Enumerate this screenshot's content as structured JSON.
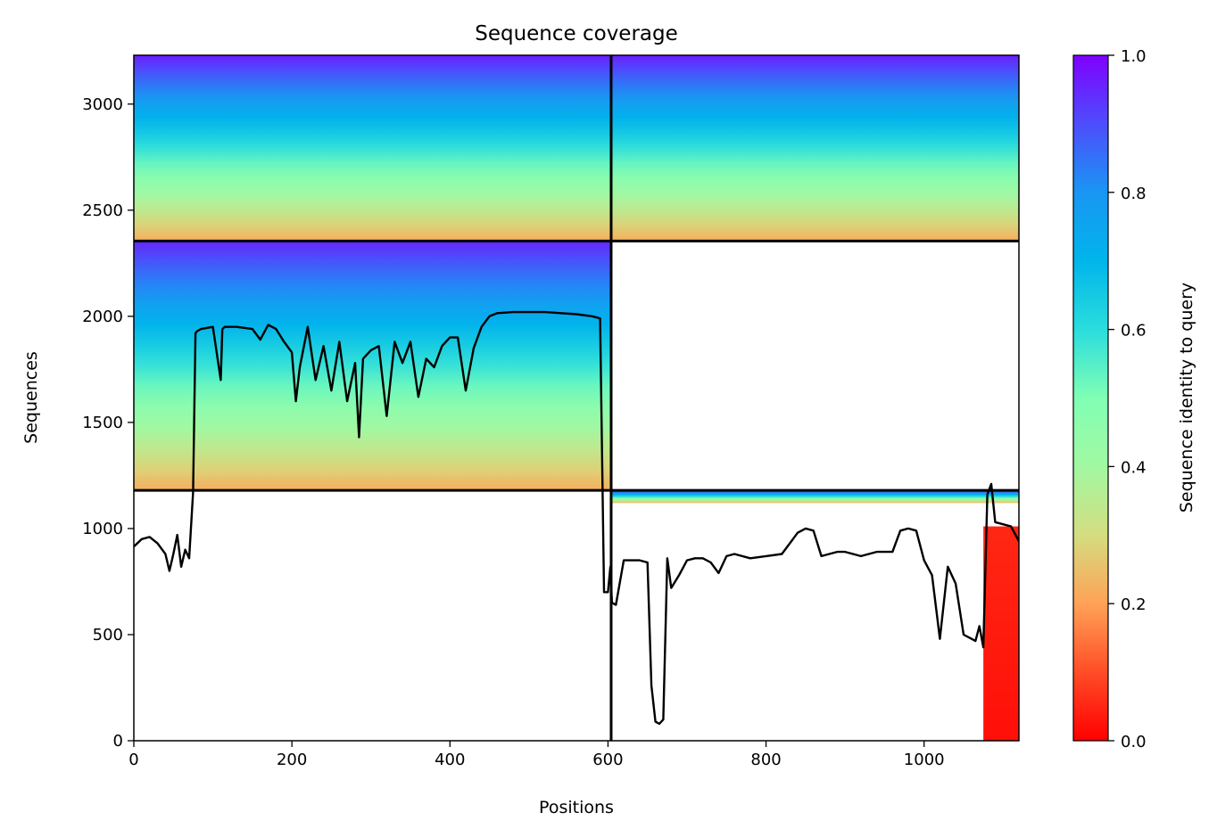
{
  "chart_data": {
    "type": "heatmap",
    "title": "Sequence coverage",
    "xlabel": "Positions",
    "ylabel": "Sequences",
    "xlim": [
      0,
      1120
    ],
    "ylim": [
      0,
      3230
    ],
    "x_ticks": [
      0,
      200,
      400,
      600,
      800,
      1000
    ],
    "y_ticks": [
      0,
      500,
      1000,
      1500,
      2000,
      2500,
      3000
    ],
    "colorbar": {
      "label": "Sequence identity to query",
      "range": [
        0.0,
        1.0
      ],
      "ticks": [
        "0.0",
        "0.2",
        "0.4",
        "0.6",
        "0.8",
        "1.0"
      ],
      "colormap": "rainbow_r"
    },
    "block_dividers": {
      "vertical_x": [
        604
      ],
      "horizontal_y": [
        1180,
        2355
      ]
    },
    "coverage_blocks": [
      {
        "x": [
          0,
          604
        ],
        "y": [
          2355,
          3230
        ],
        "identity_bottom": 0.22,
        "identity_top": 0.96
      },
      {
        "x": [
          604,
          1120
        ],
        "y": [
          2355,
          3230
        ],
        "identity_bottom": 0.22,
        "identity_top": 0.96
      },
      {
        "x": [
          0,
          604
        ],
        "y": [
          1180,
          2355
        ],
        "identity_bottom": 0.22,
        "identity_top": 0.95
      },
      {
        "x": [
          604,
          1120
        ],
        "y": [
          1180,
          1120
        ],
        "identity_bottom": 0.22,
        "identity_top": 0.95
      },
      {
        "x": [
          1075,
          1120
        ],
        "y": [
          0,
          1010
        ],
        "identity_bottom": 0.02,
        "identity_top": 0.05
      }
    ],
    "coverage_line": {
      "x": [
        0,
        10,
        20,
        30,
        40,
        45,
        50,
        55,
        60,
        65,
        70,
        75,
        78,
        80,
        85,
        100,
        110,
        112,
        115,
        130,
        150,
        160,
        170,
        180,
        190,
        200,
        205,
        210,
        220,
        230,
        240,
        250,
        260,
        270,
        280,
        285,
        290,
        300,
        310,
        320,
        330,
        340,
        350,
        360,
        370,
        380,
        390,
        400,
        410,
        420,
        430,
        440,
        450,
        460,
        480,
        500,
        520,
        540,
        560,
        580,
        590,
        595,
        600,
        603,
        605,
        610,
        620,
        630,
        640,
        650,
        655,
        660,
        665,
        670,
        675,
        680,
        690,
        700,
        710,
        720,
        730,
        740,
        750,
        760,
        780,
        800,
        820,
        840,
        850,
        860,
        870,
        880,
        890,
        900,
        920,
        940,
        950,
        960,
        970,
        980,
        990,
        1000,
        1010,
        1020,
        1030,
        1040,
        1050,
        1060,
        1065,
        1070,
        1075,
        1080,
        1085,
        1090,
        1100,
        1110,
        1120
      ],
      "y": [
        915,
        950,
        960,
        930,
        880,
        800,
        880,
        970,
        820,
        900,
        860,
        1170,
        1920,
        1930,
        1940,
        1950,
        1700,
        1940,
        1950,
        1950,
        1940,
        1890,
        1960,
        1940,
        1880,
        1830,
        1600,
        1760,
        1950,
        1700,
        1860,
        1650,
        1880,
        1600,
        1780,
        1430,
        1800,
        1840,
        1860,
        1530,
        1880,
        1780,
        1880,
        1620,
        1800,
        1760,
        1860,
        1900,
        1900,
        1650,
        1850,
        1950,
        2000,
        2015,
        2020,
        2020,
        2020,
        2015,
        2010,
        2000,
        1990,
        700,
        700,
        820,
        650,
        640,
        850,
        850,
        850,
        840,
        260,
        90,
        80,
        100,
        860,
        720,
        780,
        850,
        860,
        860,
        840,
        790,
        870,
        880,
        860,
        870,
        880,
        980,
        1000,
        990,
        870,
        880,
        890,
        890,
        870,
        890,
        890,
        890,
        990,
        1000,
        990,
        850,
        780,
        480,
        820,
        740,
        500,
        480,
        470,
        540,
        440,
        1160,
        1210,
        1030,
        1020,
        1010,
        940
      ]
    }
  }
}
